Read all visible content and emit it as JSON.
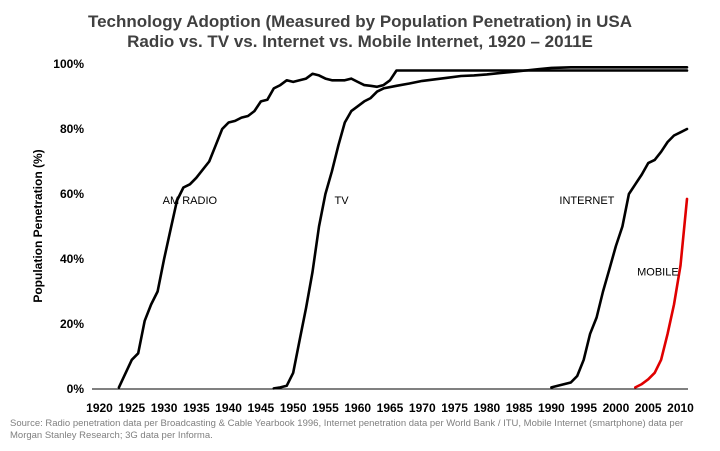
{
  "chart_data": {
    "type": "line",
    "title": "Technology Adoption (Measured by Population Penetration) in USA",
    "subtitle": "Radio vs. TV vs. Internet vs. Mobile Internet, 1920 – 2011E",
    "xlabel": "",
    "ylabel": "Population Penetration (%)",
    "xlim": [
      1920,
      2012
    ],
    "ylim": [
      0,
      100
    ],
    "x_ticks": [
      "1920",
      "1925",
      "1930",
      "1935",
      "1940",
      "1945",
      "1950",
      "1955",
      "1960",
      "1965",
      "1970",
      "1975",
      "1980",
      "1985",
      "1990",
      "1995",
      "2000",
      "2005",
      "2010"
    ],
    "y_ticks": [
      "0%",
      "20%",
      "40%",
      "60%",
      "80%",
      "100%"
    ],
    "grid": false,
    "legend": "none",
    "series": [
      {
        "name": "AM RADIO",
        "color": "#000000",
        "points": [
          [
            1923,
            0.5
          ],
          [
            1925,
            9
          ],
          [
            1926,
            11
          ],
          [
            1927,
            21
          ],
          [
            1928,
            26
          ],
          [
            1929,
            30
          ],
          [
            1930,
            40
          ],
          [
            1931,
            49
          ],
          [
            1932,
            58
          ],
          [
            1933,
            62
          ],
          [
            1934,
            63
          ],
          [
            1935,
            65
          ],
          [
            1936,
            67.5
          ],
          [
            1937,
            70
          ],
          [
            1938,
            75
          ],
          [
            1939,
            80
          ],
          [
            1940,
            82
          ],
          [
            1941,
            82.5
          ],
          [
            1942,
            83.5
          ],
          [
            1943,
            84
          ],
          [
            1944,
            85.5
          ],
          [
            1945,
            88.5
          ],
          [
            1946,
            89
          ],
          [
            1947,
            92.5
          ],
          [
            1948,
            93.5
          ],
          [
            1949,
            95
          ],
          [
            1950,
            94.5
          ],
          [
            1951,
            95
          ],
          [
            1952,
            95.5
          ],
          [
            1953,
            97
          ],
          [
            1954,
            96.5
          ],
          [
            1955,
            95.5
          ],
          [
            1956,
            95
          ],
          [
            1957,
            95
          ],
          [
            1958,
            95
          ],
          [
            1959,
            95.5
          ],
          [
            1960,
            94.5
          ],
          [
            1961,
            93.5
          ],
          [
            1962,
            93.3
          ],
          [
            1963,
            93
          ],
          [
            1964,
            93.5
          ],
          [
            1965,
            95
          ],
          [
            1966,
            98
          ],
          [
            1970,
            98
          ],
          [
            1980,
            98
          ],
          [
            1990,
            98
          ],
          [
            2000,
            98
          ],
          [
            2011,
            98
          ]
        ]
      },
      {
        "name": "TV",
        "color": "#000000",
        "points": [
          [
            1947,
            0.2
          ],
          [
            1948,
            0.5
          ],
          [
            1949,
            1
          ],
          [
            1950,
            5
          ],
          [
            1951,
            15
          ],
          [
            1952,
            25
          ],
          [
            1953,
            36
          ],
          [
            1954,
            50
          ],
          [
            1955,
            60
          ],
          [
            1956,
            67
          ],
          [
            1957,
            75
          ],
          [
            1958,
            82
          ],
          [
            1959,
            85.5
          ],
          [
            1960,
            87
          ],
          [
            1961,
            88.5
          ],
          [
            1962,
            89.5
          ],
          [
            1963,
            91.5
          ],
          [
            1964,
            92.5
          ],
          [
            1966,
            93.3
          ],
          [
            1968,
            94
          ],
          [
            1970,
            94.8
          ],
          [
            1972,
            95.3
          ],
          [
            1974,
            95.8
          ],
          [
            1976,
            96.3
          ],
          [
            1978,
            96.5
          ],
          [
            1980,
            96.8
          ],
          [
            1982,
            97.2
          ],
          [
            1984,
            97.6
          ],
          [
            1986,
            98
          ],
          [
            1988,
            98.4
          ],
          [
            1990,
            98.8
          ],
          [
            1993,
            99
          ],
          [
            2000,
            99
          ],
          [
            2011,
            99
          ]
        ]
      },
      {
        "name": "INTERNET",
        "color": "#000000",
        "points": [
          [
            1990,
            0.5
          ],
          [
            1991,
            1
          ],
          [
            1992,
            1.5
          ],
          [
            1993,
            2
          ],
          [
            1994,
            4
          ],
          [
            1995,
            9
          ],
          [
            1996,
            17
          ],
          [
            1997,
            22
          ],
          [
            1998,
            30
          ],
          [
            1999,
            37
          ],
          [
            2000,
            44
          ],
          [
            2001,
            50
          ],
          [
            2002,
            60
          ],
          [
            2003,
            63
          ],
          [
            2004,
            66
          ],
          [
            2005,
            69.5
          ],
          [
            2006,
            70.5
          ],
          [
            2007,
            73
          ],
          [
            2008,
            76
          ],
          [
            2009,
            78
          ],
          [
            2010,
            79
          ],
          [
            2011,
            80
          ]
        ]
      },
      {
        "name": "MOBILE",
        "color": "#e00000",
        "points": [
          [
            2003,
            0.5
          ],
          [
            2004,
            1.5
          ],
          [
            2005,
            3
          ],
          [
            2006,
            5
          ],
          [
            2007,
            9
          ],
          [
            2008,
            17
          ],
          [
            2009,
            26
          ],
          [
            2010,
            38
          ],
          [
            2011,
            58.5
          ]
        ]
      }
    ],
    "annotations": [
      {
        "text": "AM RADIO",
        "x": 1934,
        "y": 57
      },
      {
        "text": "TV",
        "x": 1957.5,
        "y": 57
      },
      {
        "text": "INTERNET",
        "x": 1995.5,
        "y": 57
      },
      {
        "text": "MOBILE",
        "x": 2006.5,
        "y": 35
      }
    ]
  },
  "source_note": {
    "line1": "Source: Radio penetration data per Broadcasting & Cable Yearbook 1996, Internet penetration data per World Bank / ITU, Mobile Internet (smartphone) data per",
    "line2": "Morgan Stanley Research; 3G data per Informa."
  }
}
